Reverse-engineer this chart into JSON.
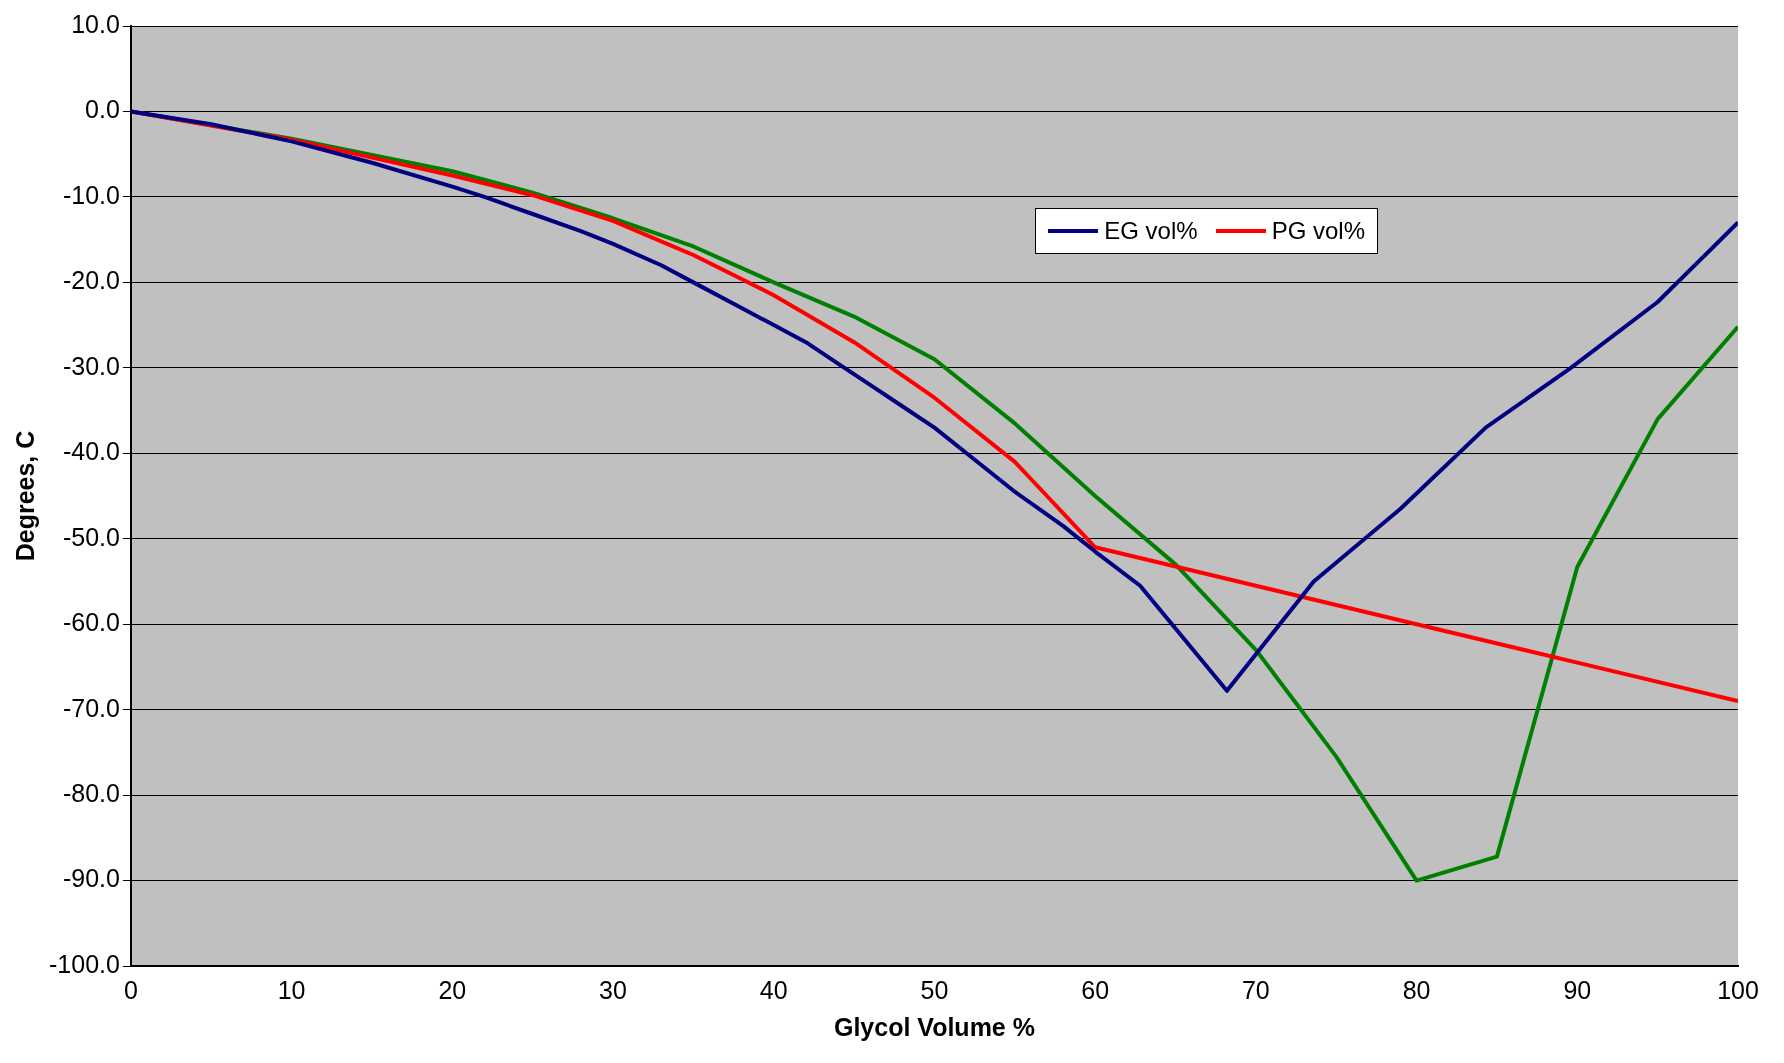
{
  "chart_data": {
    "type": "line",
    "xlabel": "Glycol Volume %",
    "ylabel": "Degrees, C",
    "xlim": [
      0,
      100
    ],
    "xticks": [
      0,
      10,
      20,
      30,
      40,
      50,
      60,
      70,
      80,
      90,
      100
    ],
    "ylim": [
      -100,
      10
    ],
    "yticks": [
      {
        "value": -100,
        "label": "-100.0"
      },
      {
        "value": -90,
        "label": "-90.0"
      },
      {
        "value": -80,
        "label": "-80.0"
      },
      {
        "value": -70,
        "label": "-70.0"
      },
      {
        "value": -60,
        "label": "-60.0"
      },
      {
        "value": -50,
        "label": "-50.0"
      },
      {
        "value": -40,
        "label": "-40.0"
      },
      {
        "value": -30,
        "label": "-30.0"
      },
      {
        "value": -20,
        "label": "-20.0"
      },
      {
        "value": -10,
        "label": "-10.0"
      },
      {
        "value": 0,
        "label": "0.0"
      },
      {
        "value": 10,
        "label": "10.0"
      }
    ],
    "grid": "y",
    "legend": "top right",
    "marker": "none",
    "line_style": "solid",
    "series": [
      {
        "name": "EG vol%",
        "color": "#000080",
        "x": [
          0,
          5,
          10,
          15,
          20,
          22,
          25,
          28,
          30,
          33,
          35,
          38,
          40,
          42,
          44,
          46,
          48,
          50,
          52,
          55,
          58,
          60,
          62.8,
          68.2,
          73.6,
          79,
          84.3,
          89.6,
          95,
          100
        ],
        "values": [
          0,
          -1.5,
          -3.5,
          -6,
          -8.8,
          -10,
          -12,
          -14,
          -15.5,
          -18,
          -20,
          -23,
          -25,
          -27,
          -29.5,
          -32,
          -34.5,
          -37,
          -40,
          -44.5,
          -48.5,
          -51.5,
          -55.5,
          -67.8,
          -55,
          -46.5,
          -37,
          -30,
          -22.3,
          -13
        ]
      },
      {
        "name": "PG vol%",
        "color": "#ff0000",
        "x": [
          0,
          10,
          20,
          25,
          30,
          35,
          40,
          45,
          50,
          55,
          57,
          60,
          70,
          80,
          90,
          100
        ],
        "values": [
          0,
          -3.3,
          -7.5,
          -9.8,
          -12.8,
          -16.8,
          -21.5,
          -27,
          -33.5,
          -41,
          -45,
          -51,
          -55.5,
          -60,
          -64.5,
          -69
        ]
      },
      {
        "color": "#008000",
        "x": [
          0,
          10,
          20,
          25,
          30,
          35,
          40,
          45,
          50,
          55,
          60,
          65,
          70,
          75,
          80,
          85,
          90,
          95,
          100
        ],
        "values": [
          0,
          -3.2,
          -7,
          -9.5,
          -12.5,
          -15.8,
          -20,
          -24,
          -29,
          -36.5,
          -45,
          -53,
          -63,
          -75.5,
          -90,
          -87.2,
          -53.3,
          -36,
          -25.2
        ]
      }
    ]
  }
}
